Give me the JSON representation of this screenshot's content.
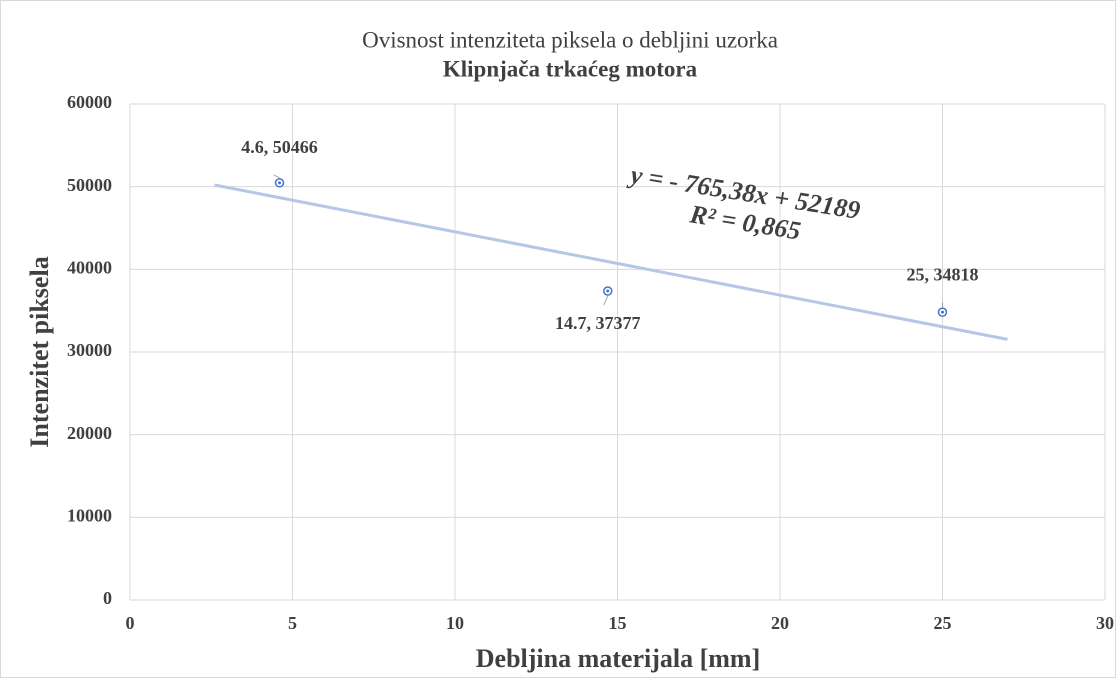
{
  "chart_data": {
    "type": "scatter",
    "title": "Ovisnost intenziteta piksela o debljini uzorka",
    "subtitle": "Klipnjača trkaćeg motora",
    "x_label": "Debljina materijala [mm]",
    "y_label": "Intenzitet piksela",
    "series": [
      {
        "name": "Intenzitet piksela",
        "color": "#4472c4",
        "x": [
          4.6,
          14.7,
          25
        ],
        "values": [
          50466,
          37377,
          34818
        ],
        "value_labels": [
          "4.6, 50466",
          "14.7, 37377",
          "25, 34818"
        ]
      }
    ],
    "trendline": {
      "equation": "y = - 765,38x + 52189",
      "r2": "R² = 0,865",
      "slope": -765.38,
      "intercept": 52189,
      "x": [
        2.6,
        27
      ],
      "color": "#b4c7e7"
    },
    "xlim": [
      0,
      30
    ],
    "xticks": [
      0,
      5,
      10,
      15,
      20,
      25,
      30
    ],
    "ylim": [
      0,
      60000
    ],
    "yticks": [
      0,
      10000,
      20000,
      30000,
      40000,
      50000,
      60000
    ],
    "grid": true
  }
}
